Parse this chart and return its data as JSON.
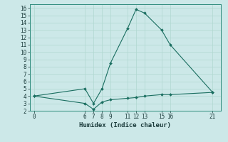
{
  "xlabel": "Humidex (Indice chaleur)",
  "bg_color": "#cce8e8",
  "grid_color": "#b0d8d0",
  "line_color": "#1a6e60",
  "xlim": [
    -0.5,
    22
  ],
  "ylim": [
    2,
    16.5
  ],
  "xticks": [
    0,
    6,
    7,
    8,
    9,
    11,
    12,
    13,
    15,
    16,
    21
  ],
  "yticks": [
    2,
    3,
    4,
    5,
    6,
    7,
    8,
    9,
    10,
    11,
    12,
    13,
    14,
    15,
    16
  ],
  "line1_x": [
    0,
    6,
    7,
    8,
    9,
    11,
    12,
    13,
    15,
    16,
    21
  ],
  "line1_y": [
    4.0,
    5.0,
    3.0,
    5.0,
    8.5,
    13.2,
    15.8,
    15.3,
    13.0,
    11.0,
    4.5
  ],
  "line2_x": [
    0,
    6,
    7,
    8,
    9,
    11,
    12,
    13,
    15,
    16,
    21
  ],
  "line2_y": [
    4.0,
    3.0,
    2.2,
    3.2,
    3.5,
    3.7,
    3.8,
    4.0,
    4.2,
    4.2,
    4.5
  ],
  "tick_fontsize": 5.5,
  "xlabel_fontsize": 6.5
}
